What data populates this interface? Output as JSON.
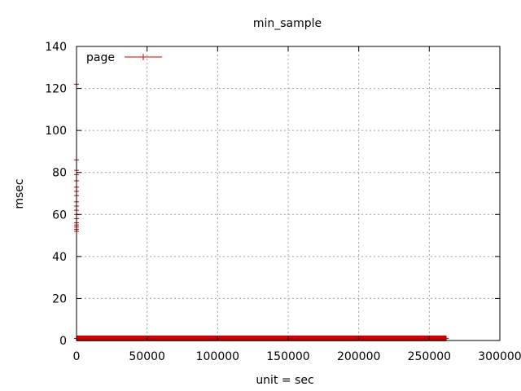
{
  "chart_data": {
    "type": "scatter",
    "title": "min_sample",
    "xlabel": "unit = sec",
    "ylabel": "msec",
    "xlim": [
      0,
      300000
    ],
    "ylim": [
      0,
      140
    ],
    "x_ticks": [
      0,
      50000,
      100000,
      150000,
      200000,
      250000,
      300000
    ],
    "y_ticks": [
      0,
      20,
      40,
      60,
      80,
      100,
      120,
      140
    ],
    "grid": true,
    "legend_position": "top-left",
    "series": [
      {
        "name": "page",
        "color": "#cc0000",
        "marker": "plus",
        "points": [
          [
            0,
            122
          ],
          [
            0,
            86
          ],
          [
            0,
            81
          ],
          [
            0,
            79
          ],
          [
            0,
            76
          ],
          [
            0,
            73
          ],
          [
            0,
            71
          ],
          [
            0,
            69
          ],
          [
            0,
            66
          ],
          [
            0,
            64
          ],
          [
            0,
            62
          ],
          [
            0,
            60
          ],
          [
            0,
            58
          ],
          [
            0,
            56
          ],
          [
            0,
            55
          ],
          [
            0,
            54
          ],
          [
            0,
            53
          ],
          [
            0,
            52
          ],
          [
            0,
            1
          ],
          [
            10000,
            1
          ],
          [
            20000,
            1
          ],
          [
            30000,
            1
          ],
          [
            40000,
            1
          ],
          [
            50000,
            1
          ],
          [
            60000,
            1
          ],
          [
            70000,
            1
          ],
          [
            80000,
            1
          ],
          [
            90000,
            1
          ],
          [
            100000,
            1
          ],
          [
            110000,
            1
          ],
          [
            120000,
            1
          ],
          [
            130000,
            1
          ],
          [
            140000,
            1
          ],
          [
            150000,
            1
          ],
          [
            160000,
            1
          ],
          [
            170000,
            1
          ],
          [
            180000,
            1
          ],
          [
            190000,
            1
          ],
          [
            200000,
            1
          ],
          [
            210000,
            1
          ],
          [
            220000,
            1
          ],
          [
            230000,
            1
          ],
          [
            240000,
            1
          ],
          [
            250000,
            1
          ],
          [
            262000,
            1
          ]
        ]
      }
    ]
  }
}
